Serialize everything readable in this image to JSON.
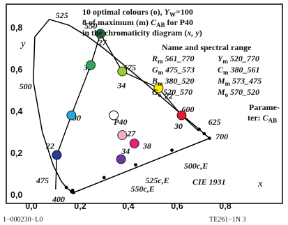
{
  "header": {
    "line1_prefix": "10 optimal colours (o), ",
    "line1_Y": "Y",
    "line1_W": "W",
    "line1_suffix": "=100",
    "line2_prefix": "8 of maximum (m) ",
    "line2_C": "C",
    "line2_AB": "AB",
    "line2_suffix": " for P40",
    "line3_prefix": "in the chromaticity diagram (",
    "line3_xy": "x, y",
    "line3_suffix": ")"
  },
  "range_panel": {
    "title": "Name and spectral range",
    "rows": [
      [
        {
          "sym": "R",
          "sub": "m",
          "range": "561_770"
        },
        {
          "sym": "Y",
          "sub": "m",
          "range": "520_770"
        }
      ],
      [
        {
          "sym": "G",
          "sub": "m",
          "range": "475_573"
        },
        {
          "sym": "C",
          "sub": "m",
          "range": "380_561"
        }
      ],
      [
        {
          "sym": "B",
          "sub": "m",
          "range": "380_520"
        },
        {
          "sym": "M",
          "sub": "m",
          "range": "573_475"
        }
      ],
      [
        {
          "sym": "G",
          "sub": "o",
          "range": "520_570"
        },
        {
          "sym": "M",
          "sub": "o",
          "range": "570_520"
        }
      ]
    ]
  },
  "parameter": {
    "line1": "Parame-",
    "line2_prefix": "ter: ",
    "line2_C": "C",
    "line2_AB": "AB"
  },
  "axes": {
    "x_name": "x",
    "y_name": "y",
    "x_ticks": [
      "0,0",
      "0,2",
      "0,4",
      "0,6",
      "0,8"
    ],
    "y_ticks": [
      "0,0",
      "0,2",
      "0,4",
      "0,6",
      "0,8"
    ],
    "cie_label": "CIE 1931",
    "origin_label": "400"
  },
  "footer": {
    "left": "1−000230−L0",
    "right": "TE261−1N  3"
  },
  "chart_data": {
    "type": "scatter",
    "xlim": [
      0.0,
      0.9
    ],
    "ylim": [
      0.0,
      0.9
    ],
    "grid": false,
    "locus_labels": [
      {
        "x": 0.1,
        "y": 0.84,
        "text": "525"
      },
      {
        "x": 0.22,
        "y": 0.79,
        "text": "550"
      },
      {
        "x": 0.38,
        "y": 0.59,
        "text": "575"
      },
      {
        "x": 0.62,
        "y": 0.39,
        "text": "600"
      },
      {
        "x": 0.73,
        "y": 0.33,
        "text": "625"
      },
      {
        "x": 0.76,
        "y": 0.26,
        "text": "700"
      },
      {
        "x": 0.63,
        "y": 0.12,
        "text": "500c,E"
      },
      {
        "x": 0.47,
        "y": 0.05,
        "text": "525c,E"
      },
      {
        "x": 0.41,
        "y": 0.01,
        "text": "550c,E"
      },
      {
        "x": 0.02,
        "y": 0.05,
        "text": "475"
      },
      {
        "x": -0.05,
        "y": 0.5,
        "text": "500"
      }
    ],
    "point_labels": [
      {
        "x": 0.275,
        "y": 0.71,
        "text": "27"
      },
      {
        "x": 0.215,
        "y": 0.59,
        "text": "38"
      },
      {
        "x": 0.355,
        "y": 0.505,
        "text": "34"
      },
      {
        "x": 0.55,
        "y": 0.455,
        "text": "22"
      },
      {
        "x": 0.17,
        "y": 0.35,
        "text": "30"
      },
      {
        "x": 0.06,
        "y": 0.215,
        "text": "22"
      },
      {
        "x": 0.395,
        "y": 0.275,
        "text": "27"
      },
      {
        "x": 0.46,
        "y": 0.215,
        "text": "38"
      },
      {
        "x": 0.372,
        "y": 0.19,
        "text": "34"
      },
      {
        "x": 0.59,
        "y": 0.31,
        "text": "30"
      },
      {
        "x": 0.34,
        "y": 0.33,
        "text": "P40"
      }
    ],
    "optimal_points": [
      {
        "x": 0.285,
        "y": 0.765,
        "color": "#1f6b3e"
      },
      {
        "x": 0.245,
        "y": 0.615,
        "color": "#2ea65a"
      },
      {
        "x": 0.375,
        "y": 0.585,
        "color": "#9acd32"
      },
      {
        "x": 0.525,
        "y": 0.505,
        "color": "#ffee00"
      },
      {
        "x": 0.62,
        "y": 0.375,
        "color": "#e51c2c"
      },
      {
        "x": 0.165,
        "y": 0.375,
        "color": "#2aa5dd"
      },
      {
        "x": 0.105,
        "y": 0.185,
        "color": "#2a3a9e"
      },
      {
        "x": 0.37,
        "y": 0.165,
        "color": "#6a3aa0"
      }
    ],
    "maximum_points": [
      {
        "x": 0.375,
        "y": 0.28,
        "color": "#f2aac6"
      },
      {
        "x": 0.425,
        "y": 0.24,
        "color": "#e0237e"
      }
    ],
    "white_point": {
      "x": 0.34,
      "y": 0.375
    }
  }
}
